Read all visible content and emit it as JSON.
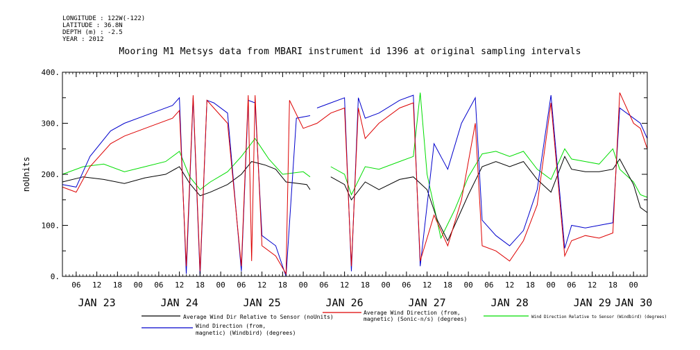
{
  "header": {
    "meta_lines": [
      "LONGITUDE : 122W(-122)",
      "LATITUDE : 36.8N",
      "DEPTH (m) : -2.5",
      "YEAR : 2012"
    ]
  },
  "chart_data": {
    "type": "line",
    "title": "Mooring M1 Metsys data from MBARI instrument id 1396 at original sampling intervals",
    "ylabel": "noUnits",
    "xlabel": "",
    "xlim": [
      "2012-01-23T02:00",
      "2012-01-30T04:00"
    ],
    "ylim": [
      0,
      400
    ],
    "yticks": [
      0,
      100,
      200,
      300,
      400
    ],
    "ytick_labels": [
      "0.",
      "100.",
      "200.",
      "300.",
      "400."
    ],
    "hour_ticks": [
      {
        "t": "2012-01-23T06:00",
        "label": "06"
      },
      {
        "t": "2012-01-23T12:00",
        "label": "12"
      },
      {
        "t": "2012-01-23T18:00",
        "label": "18"
      },
      {
        "t": "2012-01-24T00:00",
        "label": "00"
      },
      {
        "t": "2012-01-24T06:00",
        "label": "06"
      },
      {
        "t": "2012-01-24T12:00",
        "label": "12"
      },
      {
        "t": "2012-01-24T18:00",
        "label": "18"
      },
      {
        "t": "2012-01-25T00:00",
        "label": "00"
      },
      {
        "t": "2012-01-25T06:00",
        "label": "06"
      },
      {
        "t": "2012-01-25T12:00",
        "label": "12"
      },
      {
        "t": "2012-01-25T18:00",
        "label": "18"
      },
      {
        "t": "2012-01-26T00:00",
        "label": "00"
      },
      {
        "t": "2012-01-26T06:00",
        "label": "06"
      },
      {
        "t": "2012-01-26T12:00",
        "label": "12"
      },
      {
        "t": "2012-01-26T18:00",
        "label": "18"
      },
      {
        "t": "2012-01-27T00:00",
        "label": "00"
      },
      {
        "t": "2012-01-27T06:00",
        "label": "06"
      },
      {
        "t": "2012-01-27T12:00",
        "label": "12"
      },
      {
        "t": "2012-01-27T18:00",
        "label": "18"
      },
      {
        "t": "2012-01-28T00:00",
        "label": "00"
      },
      {
        "t": "2012-01-28T06:00",
        "label": "06"
      },
      {
        "t": "2012-01-28T12:00",
        "label": "12"
      },
      {
        "t": "2012-01-28T18:00",
        "label": "18"
      },
      {
        "t": "2012-01-29T00:00",
        "label": "00"
      },
      {
        "t": "2012-01-29T06:00",
        "label": "06"
      },
      {
        "t": "2012-01-29T12:00",
        "label": "12"
      },
      {
        "t": "2012-01-29T18:00",
        "label": "18"
      },
      {
        "t": "2012-01-30T00:00",
        "label": "00"
      }
    ],
    "day_labels": [
      {
        "t": "2012-01-23T12:00",
        "label": "JAN 23"
      },
      {
        "t": "2012-01-24T12:00",
        "label": "JAN 24"
      },
      {
        "t": "2012-01-25T12:00",
        "label": "JAN 25"
      },
      {
        "t": "2012-01-26T12:00",
        "label": "JAN 26"
      },
      {
        "t": "2012-01-27T12:00",
        "label": "JAN 27"
      },
      {
        "t": "2012-01-28T12:00",
        "label": "JAN 28"
      },
      {
        "t": "2012-01-29T12:00",
        "label": "JAN 29"
      },
      {
        "t": "2012-01-30T00:00",
        "label": "JAN 30"
      }
    ],
    "series": [
      {
        "name": "Average Wind Dir Relative to Sensor (noUnits)",
        "color": "#000000",
        "points": [
          [
            "2012-01-23T02:00",
            185
          ],
          [
            "2012-01-23T08:00",
            195
          ],
          [
            "2012-01-23T14:00",
            190
          ],
          [
            "2012-01-23T20:00",
            182
          ],
          [
            "2012-01-24T02:00",
            193
          ],
          [
            "2012-01-24T08:00",
            200
          ],
          [
            "2012-01-24T12:00",
            215
          ],
          [
            "2012-01-24T15:00",
            182
          ],
          [
            "2012-01-24T18:00",
            158
          ],
          [
            "2012-01-24T21:00",
            165
          ],
          [
            "2012-01-25T02:00",
            180
          ],
          [
            "2012-01-25T06:00",
            200
          ],
          [
            "2012-01-25T09:00",
            225
          ],
          [
            "2012-01-25T13:00",
            218
          ],
          [
            "2012-01-25T16:00",
            210
          ],
          [
            "2012-01-25T19:00",
            185
          ],
          [
            "2012-01-26T01:00",
            180
          ],
          [
            "2012-01-26T02:00",
            170
          ],
          null,
          [
            "2012-01-26T08:00",
            195
          ],
          [
            "2012-01-26T12:00",
            180
          ],
          [
            "2012-01-26T14:00",
            150
          ],
          [
            "2012-01-26T18:00",
            185
          ],
          [
            "2012-01-26T22:00",
            170
          ],
          [
            "2012-01-27T04:00",
            190
          ],
          [
            "2012-01-27T08:00",
            195
          ],
          [
            "2012-01-27T12:00",
            170
          ],
          [
            "2012-01-27T15:00",
            110
          ],
          [
            "2012-01-27T18:00",
            70
          ],
          [
            "2012-01-27T21:00",
            115
          ],
          [
            "2012-01-28T00:00",
            160
          ],
          [
            "2012-01-28T04:00",
            215
          ],
          [
            "2012-01-28T08:00",
            225
          ],
          [
            "2012-01-28T12:00",
            215
          ],
          [
            "2012-01-28T16:00",
            225
          ],
          [
            "2012-01-28T20:00",
            190
          ],
          [
            "2012-01-29T00:00",
            165
          ],
          [
            "2012-01-29T04:00",
            235
          ],
          [
            "2012-01-29T06:00",
            210
          ],
          [
            "2012-01-29T10:00",
            205
          ],
          [
            "2012-01-29T14:00",
            205
          ],
          [
            "2012-01-29T18:00",
            210
          ],
          [
            "2012-01-29T20:00",
            230
          ],
          [
            "2012-01-30T00:00",
            180
          ],
          [
            "2012-01-30T02:00",
            135
          ],
          [
            "2012-01-30T04:00",
            125
          ]
        ]
      },
      {
        "name": "Average Wind Direction (from, magnetic) (Sonic-n/s) (degrees)",
        "color": "#dd0000",
        "points": [
          [
            "2012-01-23T02:00",
            175
          ],
          [
            "2012-01-23T06:00",
            165
          ],
          [
            "2012-01-23T10:00",
            215
          ],
          [
            "2012-01-23T16:00",
            260
          ],
          [
            "2012-01-23T20:00",
            275
          ],
          [
            "2012-01-24T04:00",
            295
          ],
          [
            "2012-01-24T10:00",
            310
          ],
          [
            "2012-01-24T12:00",
            325
          ],
          [
            "2012-01-24T14:00",
            20
          ],
          [
            "2012-01-24T16:00",
            355
          ],
          [
            "2012-01-24T18:00",
            10
          ],
          [
            "2012-01-24T20:00",
            345
          ],
          [
            "2012-01-24T22:00",
            330
          ],
          [
            "2012-01-25T02:00",
            300
          ],
          [
            "2012-01-25T06:00",
            20
          ],
          [
            "2012-01-25T08:00",
            355
          ],
          [
            "2012-01-25T09:00",
            30
          ],
          [
            "2012-01-25T10:00",
            355
          ],
          [
            "2012-01-25T12:00",
            60
          ],
          [
            "2012-01-25T16:00",
            40
          ],
          [
            "2012-01-25T19:00",
            5
          ],
          [
            "2012-01-25T20:00",
            345
          ],
          [
            "2012-01-26T00:00",
            290
          ],
          [
            "2012-01-26T04:00",
            300
          ],
          [
            "2012-01-26T08:00",
            320
          ],
          [
            "2012-01-26T12:00",
            330
          ],
          [
            "2012-01-26T14:00",
            20
          ],
          [
            "2012-01-26T16:00",
            330
          ],
          [
            "2012-01-26T18:00",
            270
          ],
          [
            "2012-01-26T22:00",
            300
          ],
          [
            "2012-01-27T04:00",
            330
          ],
          [
            "2012-01-27T08:00",
            340
          ],
          [
            "2012-01-27T10:00",
            30
          ],
          [
            "2012-01-27T14:00",
            120
          ],
          [
            "2012-01-27T18:00",
            60
          ],
          [
            "2012-01-27T22:00",
            150
          ],
          [
            "2012-01-28T02:00",
            300
          ],
          [
            "2012-01-28T04:00",
            60
          ],
          [
            "2012-01-28T08:00",
            50
          ],
          [
            "2012-01-28T12:00",
            30
          ],
          [
            "2012-01-28T16:00",
            70
          ],
          [
            "2012-01-28T20:00",
            140
          ],
          [
            "2012-01-29T00:00",
            340
          ],
          [
            "2012-01-29T04:00",
            40
          ],
          [
            "2012-01-29T06:00",
            70
          ],
          [
            "2012-01-29T10:00",
            80
          ],
          [
            "2012-01-29T14:00",
            75
          ],
          [
            "2012-01-29T18:00",
            85
          ],
          [
            "2012-01-29T20:00",
            360
          ],
          [
            "2012-01-30T00:00",
            300
          ],
          [
            "2012-01-30T02:00",
            290
          ],
          [
            "2012-01-30T04:00",
            250
          ]
        ]
      },
      {
        "name": "Wind Direction Relative to Sensor (Windbird) (degrees)",
        "color": "#00dd00",
        "points": [
          [
            "2012-01-23T02:00",
            200
          ],
          [
            "2012-01-23T08:00",
            215
          ],
          [
            "2012-01-23T14:00",
            220
          ],
          [
            "2012-01-23T20:00",
            205
          ],
          [
            "2012-01-24T02:00",
            215
          ],
          [
            "2012-01-24T08:00",
            225
          ],
          [
            "2012-01-24T12:00",
            245
          ],
          [
            "2012-01-24T15:00",
            195
          ],
          [
            "2012-01-24T18:00",
            170
          ],
          [
            "2012-01-24T21:00",
            185
          ],
          [
            "2012-01-25T02:00",
            205
          ],
          [
            "2012-01-25T06:00",
            235
          ],
          [
            "2012-01-25T10:00",
            270
          ],
          [
            "2012-01-25T14:00",
            230
          ],
          [
            "2012-01-25T18:00",
            200
          ],
          [
            "2012-01-26T00:00",
            205
          ],
          [
            "2012-01-26T02:00",
            195
          ],
          null,
          [
            "2012-01-26T08:00",
            215
          ],
          [
            "2012-01-26T12:00",
            200
          ],
          [
            "2012-01-26T14:00",
            160
          ],
          [
            "2012-01-26T18:00",
            215
          ],
          [
            "2012-01-26T22:00",
            210
          ],
          [
            "2012-01-27T04:00",
            225
          ],
          [
            "2012-01-27T08:00",
            235
          ],
          [
            "2012-01-27T10:00",
            360
          ],
          [
            "2012-01-27T12:00",
            200
          ],
          [
            "2012-01-27T16:00",
            75
          ],
          [
            "2012-01-27T20:00",
            130
          ],
          [
            "2012-01-28T00:00",
            195
          ],
          [
            "2012-01-28T04:00",
            240
          ],
          [
            "2012-01-28T08:00",
            245
          ],
          [
            "2012-01-28T12:00",
            235
          ],
          [
            "2012-01-28T16:00",
            245
          ],
          [
            "2012-01-28T20:00",
            210
          ],
          [
            "2012-01-29T00:00",
            190
          ],
          [
            "2012-01-29T04:00",
            250
          ],
          [
            "2012-01-29T06:00",
            230
          ],
          [
            "2012-01-29T10:00",
            225
          ],
          [
            "2012-01-29T14:00",
            220
          ],
          [
            "2012-01-29T18:00",
            250
          ],
          [
            "2012-01-29T20:00",
            210
          ],
          [
            "2012-01-30T00:00",
            185
          ],
          [
            "2012-01-30T02:00",
            160
          ],
          [
            "2012-01-30T04:00",
            155
          ]
        ]
      },
      {
        "name": "Wind Direction (from, magnetic) (Windbird) (degrees)",
        "color": "#0000cc",
        "points": [
          [
            "2012-01-23T02:00",
            180
          ],
          [
            "2012-01-23T06:00",
            175
          ],
          [
            "2012-01-23T10:00",
            235
          ],
          [
            "2012-01-23T16:00",
            285
          ],
          [
            "2012-01-23T20:00",
            300
          ],
          [
            "2012-01-24T04:00",
            320
          ],
          [
            "2012-01-24T10:00",
            335
          ],
          [
            "2012-01-24T12:00",
            350
          ],
          [
            "2012-01-24T14:00",
            5
          ],
          [
            "2012-01-24T16:00",
            350
          ],
          [
            "2012-01-24T18:00",
            0
          ],
          [
            "2012-01-24T20:00",
            345
          ],
          [
            "2012-01-24T22:00",
            340
          ],
          [
            "2012-01-25T02:00",
            320
          ],
          [
            "2012-01-25T06:00",
            10
          ],
          [
            "2012-01-25T08:00",
            345
          ],
          [
            "2012-01-25T10:00",
            340
          ],
          [
            "2012-01-25T12:00",
            80
          ],
          [
            "2012-01-25T16:00",
            60
          ],
          [
            "2012-01-25T19:00",
            0
          ],
          [
            "2012-01-25T22:00",
            310
          ],
          [
            "2012-01-26T02:00",
            315
          ],
          null,
          [
            "2012-01-26T04:00",
            330
          ],
          [
            "2012-01-26T08:00",
            340
          ],
          [
            "2012-01-26T12:00",
            350
          ],
          [
            "2012-01-26T14:00",
            10
          ],
          [
            "2012-01-26T16:00",
            350
          ],
          [
            "2012-01-26T18:00",
            310
          ],
          [
            "2012-01-26T22:00",
            320
          ],
          [
            "2012-01-27T04:00",
            345
          ],
          [
            "2012-01-27T08:00",
            355
          ],
          [
            "2012-01-27T10:00",
            20
          ],
          [
            "2012-01-27T14:00",
            260
          ],
          [
            "2012-01-27T18:00",
            210
          ],
          [
            "2012-01-27T22:00",
            300
          ],
          [
            "2012-01-28T02:00",
            350
          ],
          [
            "2012-01-28T04:00",
            110
          ],
          [
            "2012-01-28T08:00",
            80
          ],
          [
            "2012-01-28T12:00",
            60
          ],
          [
            "2012-01-28T16:00",
            90
          ],
          [
            "2012-01-28T20:00",
            170
          ],
          [
            "2012-01-29T00:00",
            355
          ],
          [
            "2012-01-29T04:00",
            55
          ],
          [
            "2012-01-29T06:00",
            100
          ],
          [
            "2012-01-29T10:00",
            95
          ],
          [
            "2012-01-29T14:00",
            100
          ],
          [
            "2012-01-29T18:00",
            105
          ],
          [
            "2012-01-29T20:00",
            330
          ],
          [
            "2012-01-30T00:00",
            310
          ],
          [
            "2012-01-30T02:00",
            300
          ],
          [
            "2012-01-30T04:00",
            270
          ]
        ]
      }
    ],
    "legend": [
      {
        "lines": [
          "Average Wind Dir Relative to Sensor (noUnits)"
        ],
        "color": "#000000"
      },
      {
        "lines": [
          "Average Wind Direction (from,",
          "magnetic) (Sonic-n/s) (degrees)"
        ],
        "color": "#dd0000"
      },
      {
        "lines": [
          "Wind Direction Relative to Sensor (Windbird) (degrees)"
        ],
        "color": "#00dd00"
      },
      {
        "lines": [
          "Wind Direction (from,",
          "magnetic) (Windbird) (degrees)"
        ],
        "color": "#0000cc"
      }
    ]
  }
}
